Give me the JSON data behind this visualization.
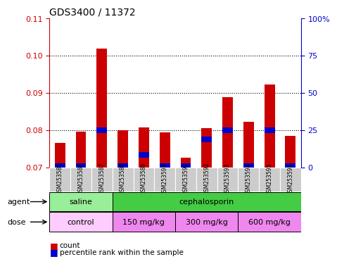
{
  "title": "GDS3400 / 11372",
  "samples": [
    "GSM253585",
    "GSM253586",
    "GSM253587",
    "GSM253588",
    "GSM253589",
    "GSM253590",
    "GSM253591",
    "GSM253592",
    "GSM253593",
    "GSM253594",
    "GSM253595",
    "GSM253596"
  ],
  "red_values": [
    0.0765,
    0.0795,
    0.102,
    0.08,
    0.0808,
    0.0793,
    0.0725,
    0.0805,
    0.0888,
    0.0823,
    0.0923,
    0.0784
  ],
  "blue_values": [
    0.0703,
    0.0703,
    0.08,
    0.0703,
    0.0733,
    0.0703,
    0.0703,
    0.0775,
    0.08,
    0.0703,
    0.08,
    0.0703
  ],
  "ylim": [
    0.07,
    0.11
  ],
  "yticks": [
    0.07,
    0.08,
    0.09,
    0.1,
    0.11
  ],
  "right_yticks": [
    0,
    25,
    50,
    75,
    100
  ],
  "bar_color": "#cc0000",
  "blue_color": "#0000cc",
  "xlabel_color": "#cc0000",
  "right_axis_color": "#0000cc",
  "agent_groups": [
    {
      "label": "saline",
      "start": 0,
      "end": 2,
      "color": "#99ee99"
    },
    {
      "label": "cephalosporin",
      "start": 3,
      "end": 11,
      "color": "#44cc44"
    }
  ],
  "dose_groups": [
    {
      "label": "control",
      "start": 0,
      "end": 2,
      "color": "#ffccff"
    },
    {
      "label": "150 mg/kg",
      "start": 3,
      "end": 5,
      "color": "#ee88ee"
    },
    {
      "label": "300 mg/kg",
      "start": 6,
      "end": 8,
      "color": "#ee88ee"
    },
    {
      "label": "600 mg/kg",
      "start": 9,
      "end": 11,
      "color": "#ee88ee"
    }
  ],
  "tick_area_color": "#cccccc"
}
